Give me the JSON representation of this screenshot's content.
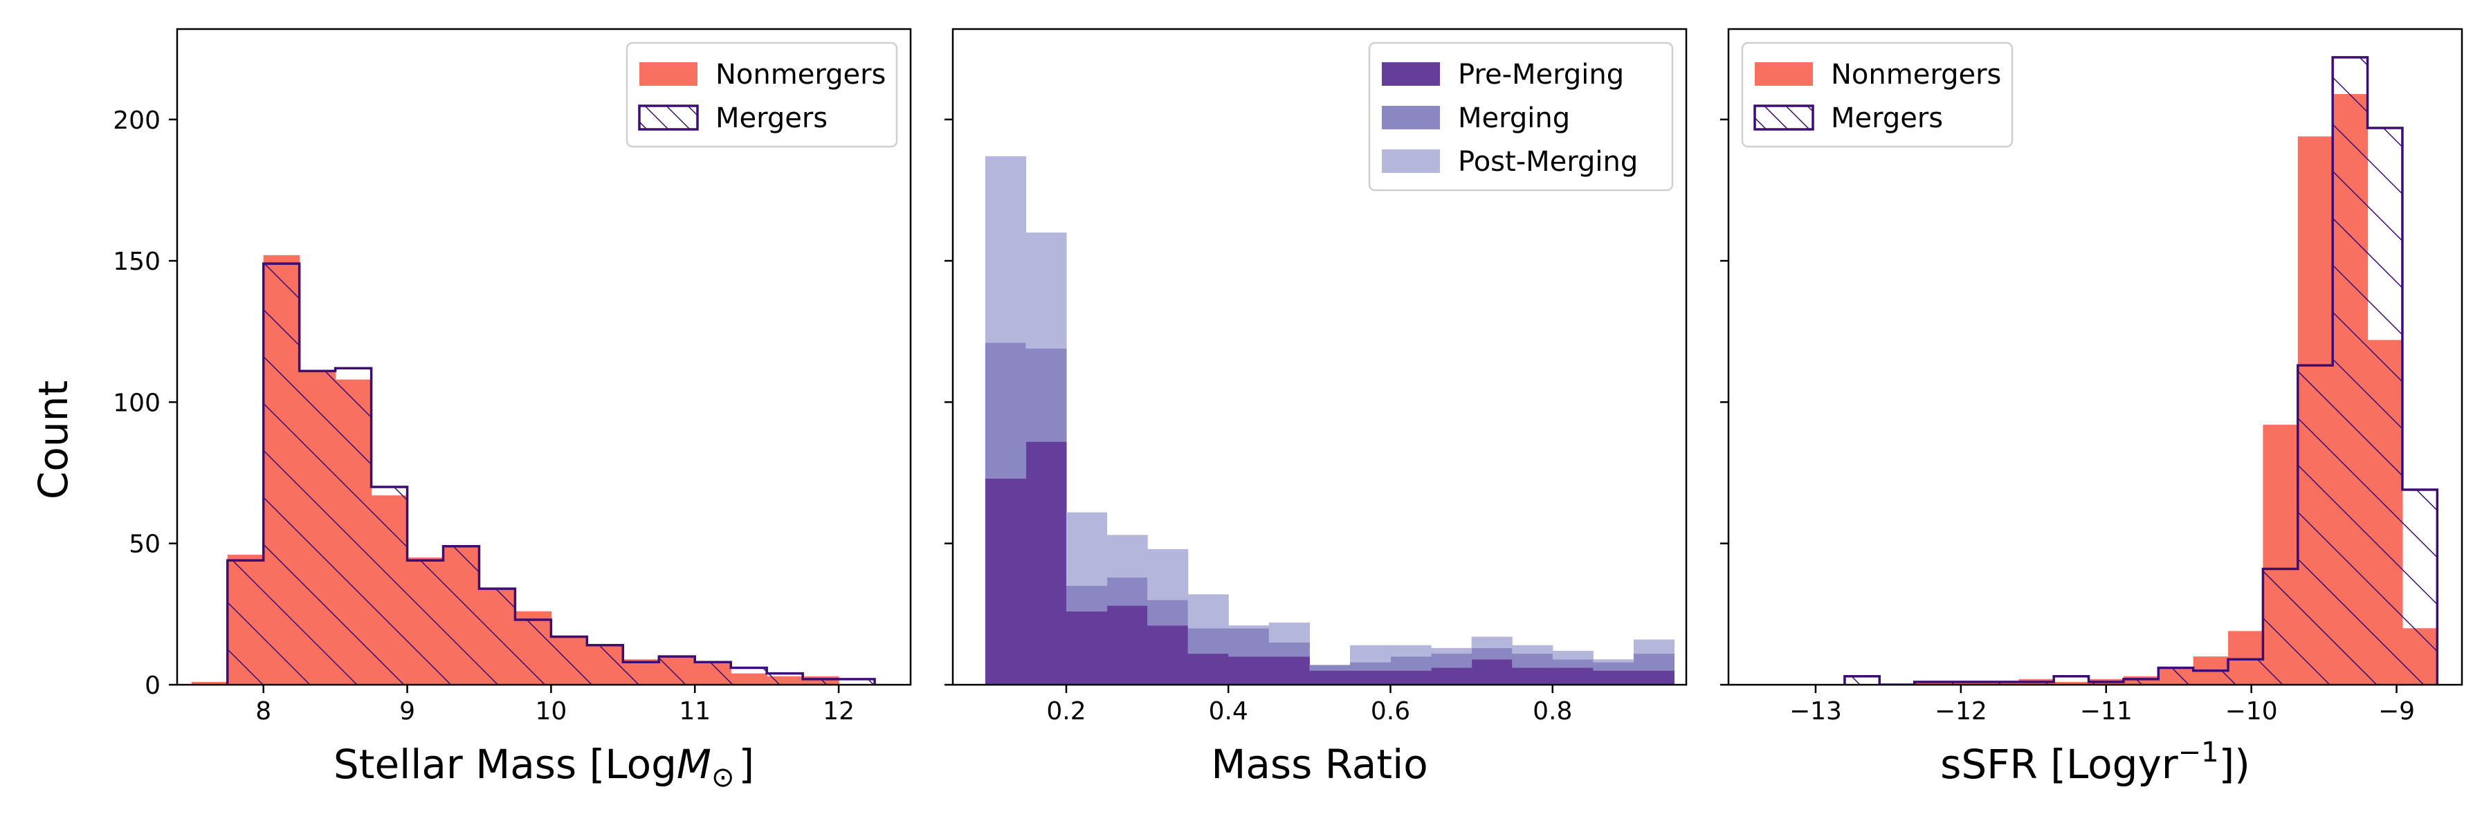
{
  "colors": {
    "nonmergers": "#f87060",
    "mergers_edge": "#3c0d72",
    "pre_merging": "#653e9c",
    "merging": "#8a87c3",
    "post_merging": "#b5b6db"
  },
  "chart_data": [
    {
      "type": "histogram",
      "title": "",
      "xlabel_parts": [
        "Stellar Mass [Log",
        "M",
        "⊙",
        "]"
      ],
      "ylabel": "Count",
      "xlim": [
        7.4,
        12.5
      ],
      "ylim": [
        0,
        232
      ],
      "xticks": [
        8,
        9,
        10,
        11,
        12
      ],
      "xtick_labels": [
        "8",
        "9",
        "10",
        "11",
        "12"
      ],
      "yticks": [
        0,
        50,
        100,
        150,
        200
      ],
      "ytick_labels": [
        "0",
        "50",
        "100",
        "150",
        "200"
      ],
      "show_ytick_labels": true,
      "legend": {
        "position": "top-right",
        "entries": [
          {
            "label": "Nonmergers",
            "style": "filled",
            "color_key": "nonmergers"
          },
          {
            "label": "Mergers",
            "style": "hatched",
            "color_key": "mergers_edge"
          }
        ]
      },
      "series": [
        {
          "name": "Nonmergers",
          "style": "filled",
          "color_key": "nonmergers",
          "bin_edges": [
            7.5,
            7.75,
            8.0,
            8.25,
            8.5,
            8.75,
            9.0,
            9.25,
            9.5,
            9.75,
            10.0,
            10.25,
            10.5,
            10.75,
            11.0,
            11.25,
            11.5,
            11.75,
            12.0
          ],
          "values": [
            1,
            46,
            152,
            111,
            108,
            67,
            45,
            49,
            34,
            26,
            17,
            14,
            9,
            10,
            8,
            4,
            3,
            3
          ]
        },
        {
          "name": "Mergers",
          "style": "hatched",
          "color_key": "mergers_edge",
          "bin_edges": [
            7.75,
            8.0,
            8.25,
            8.5,
            8.75,
            9.0,
            9.25,
            9.5,
            9.75,
            10.0,
            10.25,
            10.5,
            10.75,
            11.0,
            11.25,
            11.5,
            11.75,
            12.0,
            12.25
          ],
          "values": [
            44,
            149,
            111,
            112,
            70,
            44,
            49,
            34,
            23,
            17,
            14,
            8,
            10,
            8,
            6,
            4,
            2,
            2
          ]
        }
      ]
    },
    {
      "type": "histogram",
      "title": "",
      "xlabel_parts": [
        "Mass Ratio"
      ],
      "ylabel": "",
      "xlim": [
        0.06,
        0.965
      ],
      "ylim": [
        0,
        232
      ],
      "xticks": [
        0.2,
        0.4,
        0.6,
        0.8
      ],
      "xtick_labels": [
        "0.2",
        "0.4",
        "0.6",
        "0.8"
      ],
      "yticks": [
        0,
        50,
        100,
        150,
        200
      ],
      "ytick_labels": [],
      "show_ytick_labels": false,
      "legend": {
        "position": "top-right",
        "entries": [
          {
            "label": "Pre-Merging",
            "style": "filled",
            "color_key": "pre_merging"
          },
          {
            "label": "Merging",
            "style": "filled",
            "color_key": "merging"
          },
          {
            "label": "Post-Merging",
            "style": "filled",
            "color_key": "post_merging"
          }
        ]
      },
      "stacked": true,
      "bin_edges": [
        0.1,
        0.15,
        0.2,
        0.25,
        0.3,
        0.35,
        0.4,
        0.45,
        0.5,
        0.55,
        0.6,
        0.65,
        0.7,
        0.75,
        0.8,
        0.85,
        0.9,
        0.95
      ],
      "series": [
        {
          "name": "Pre-Merging",
          "color_key": "pre_merging",
          "values": [
            73,
            86,
            26,
            28,
            21,
            11,
            10,
            10,
            5,
            5,
            5,
            6,
            9,
            6,
            6,
            5,
            5
          ]
        },
        {
          "name": "Merging",
          "color_key": "merging",
          "values": [
            48,
            33,
            9,
            10,
            9,
            9,
            10,
            5,
            2,
            3,
            5,
            5,
            4,
            5,
            3,
            3,
            6
          ]
        },
        {
          "name": "Post-Merging",
          "color_key": "post_merging",
          "values": [
            66,
            41,
            26,
            15,
            18,
            12,
            1,
            7,
            0,
            6,
            4,
            2,
            4,
            3,
            3,
            1,
            5
          ]
        }
      ]
    },
    {
      "type": "histogram",
      "title": "",
      "xlabel_parts": [
        "sSFR [Logyr",
        "−1",
        "])"
      ],
      "ylabel": "",
      "xlim": [
        -13.6,
        -8.55
      ],
      "ylim": [
        0,
        232
      ],
      "xticks": [
        -13,
        -12,
        -11,
        -10,
        -9
      ],
      "xtick_labels": [
        "−13",
        "−12",
        "−11",
        "−10",
        "−9"
      ],
      "yticks": [
        0,
        50,
        100,
        150,
        200
      ],
      "ytick_labels": [],
      "show_ytick_labels": false,
      "legend": {
        "position": "top-left",
        "entries": [
          {
            "label": "Nonmergers",
            "style": "filled",
            "color_key": "nonmergers"
          },
          {
            "label": "Mergers",
            "style": "hatched",
            "color_key": "mergers_edge"
          }
        ]
      },
      "series": [
        {
          "name": "Nonmergers",
          "style": "filled",
          "color_key": "nonmergers",
          "bin_edges": [
            -13.52,
            -13.28,
            -13.04,
            -12.8,
            -12.56,
            -12.32,
            -12.08,
            -11.84,
            -11.6,
            -11.36,
            -11.12,
            -10.88,
            -10.64,
            -10.4,
            -10.16,
            -9.92,
            -9.68,
            -9.44,
            -9.2,
            -8.96,
            -8.72
          ],
          "values": [
            0,
            0,
            0,
            0,
            0,
            1,
            1,
            1,
            2,
            1,
            2,
            3,
            6,
            10,
            19,
            92,
            194,
            209,
            122,
            20
          ]
        },
        {
          "name": "Mergers",
          "style": "hatched",
          "color_key": "mergers_edge",
          "bin_edges": [
            -12.8,
            -12.56,
            -12.32,
            -12.08,
            -11.84,
            -11.6,
            -11.36,
            -11.12,
            -10.88,
            -10.64,
            -10.4,
            -10.16,
            -9.92,
            -9.68,
            -9.44,
            -9.2,
            -8.96,
            -8.72
          ],
          "values": [
            3,
            0,
            1,
            1,
            1,
            1,
            3,
            1,
            2,
            6,
            5,
            9,
            41,
            113,
            222,
            197,
            69
          ]
        }
      ]
    }
  ]
}
